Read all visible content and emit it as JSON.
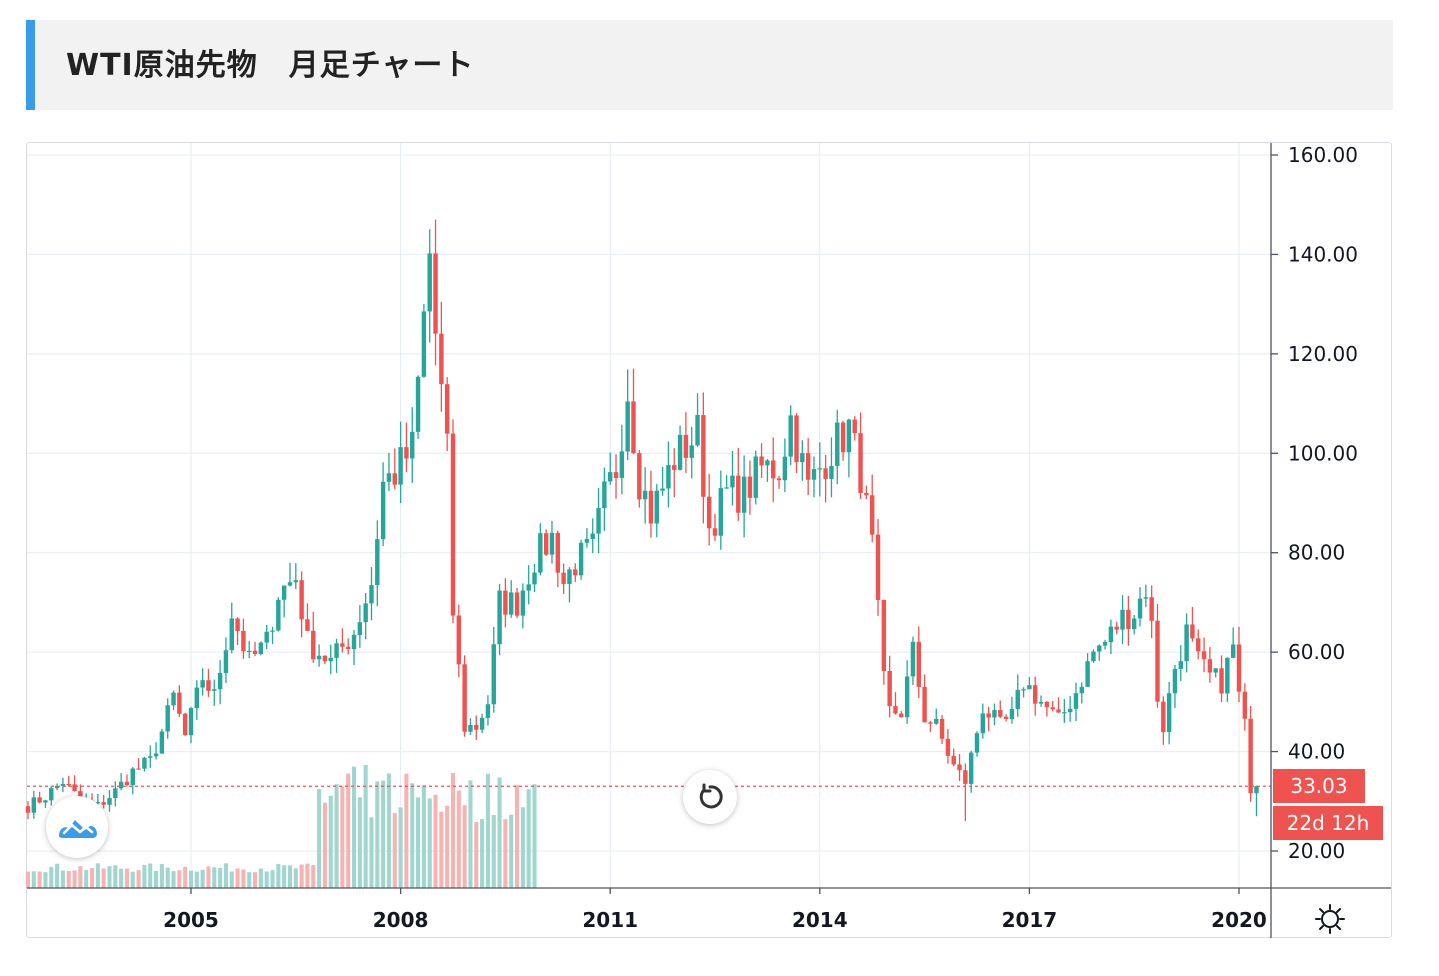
{
  "header": {
    "title": "WTI原油先物　月足チャート"
  },
  "colors": {
    "up": "#26a69a",
    "down": "#ef5350",
    "vol_up": "#9fd6d0",
    "vol_down": "#f5b3b1",
    "grid": "#e4ebf2",
    "accent": "#3a9be9",
    "last_price_line": "#ef5350"
  },
  "icons": {
    "reset": "refresh-icon",
    "logo": "tradingview-logo-icon",
    "settings": "gear-icon"
  },
  "y_axis": {
    "ticks": [
      "160.00",
      "140.00",
      "120.00",
      "100.00",
      "80.00",
      "60.00",
      "40.00",
      "20.00"
    ]
  },
  "x_axis": {
    "ticks": [
      "2005",
      "2008",
      "2011",
      "2014",
      "2017",
      "2020"
    ]
  },
  "last_price": {
    "label": "33.03",
    "countdown": "22d 12h"
  },
  "chart_data": {
    "type": "candlestick",
    "title": "WTI原油先物　月足チャート",
    "interval": "monthly",
    "x_range": [
      "2002-09",
      "2020-04"
    ],
    "ylim": [
      12,
      161
    ],
    "last_price": 33.03,
    "grid": true,
    "close_anchors": [
      [
        "2002-09",
        29
      ],
      [
        "2002-12",
        31
      ],
      [
        "2003-03",
        34
      ],
      [
        "2003-06",
        30
      ],
      [
        "2003-09",
        29
      ],
      [
        "2003-12",
        32
      ],
      [
        "2004-03",
        36
      ],
      [
        "2004-06",
        38
      ],
      [
        "2004-08",
        44
      ],
      [
        "2004-10",
        51
      ],
      [
        "2004-12",
        43
      ],
      [
        "2005-03",
        55
      ],
      [
        "2005-05",
        51
      ],
      [
        "2005-08",
        68
      ],
      [
        "2005-11",
        58
      ],
      [
        "2006-02",
        62
      ],
      [
        "2006-04",
        72
      ],
      [
        "2006-07",
        75
      ],
      [
        "2006-09",
        62
      ],
      [
        "2007-01",
        58
      ],
      [
        "2007-05",
        64
      ],
      [
        "2007-08",
        74
      ],
      [
        "2007-10",
        94
      ],
      [
        "2007-12",
        96
      ],
      [
        "2008-03",
        101
      ],
      [
        "2008-05",
        127
      ],
      [
        "2008-06",
        140
      ],
      [
        "2008-07",
        124
      ],
      [
        "2008-09",
        100
      ],
      [
        "2008-10",
        68
      ],
      [
        "2008-12",
        45
      ],
      [
        "2009-02",
        45
      ],
      [
        "2009-04",
        50
      ],
      [
        "2009-06",
        70
      ],
      [
        "2009-09",
        70
      ],
      [
        "2009-12",
        79
      ],
      [
        "2010-03",
        83
      ],
      [
        "2010-05",
        74
      ],
      [
        "2010-07",
        78
      ],
      [
        "2010-10",
        81
      ],
      [
        "2010-12",
        91
      ],
      [
        "2011-02",
        97
      ],
      [
        "2011-04",
        113
      ],
      [
        "2011-06",
        95
      ],
      [
        "2011-08",
        88
      ],
      [
        "2011-10",
        93
      ],
      [
        "2011-12",
        99
      ],
      [
        "2012-04",
        104
      ],
      [
        "2012-06",
        85
      ],
      [
        "2012-09",
        92
      ],
      [
        "2012-12",
        92
      ],
      [
        "2013-03",
        97
      ],
      [
        "2013-06",
        97
      ],
      [
        "2013-08",
        107
      ],
      [
        "2013-11",
        93
      ],
      [
        "2014-01",
        97
      ],
      [
        "2014-03",
        101
      ],
      [
        "2014-06",
        105
      ],
      [
        "2014-08",
        96
      ],
      [
        "2014-10",
        81
      ],
      [
        "2014-12",
        54
      ],
      [
        "2015-01",
        48
      ],
      [
        "2015-03",
        48
      ],
      [
        "2015-05",
        60
      ],
      [
        "2015-07",
        47
      ],
      [
        "2015-09",
        45
      ],
      [
        "2015-12",
        37
      ],
      [
        "2016-02",
        34
      ],
      [
        "2016-05",
        49
      ],
      [
        "2016-08",
        45
      ],
      [
        "2016-10",
        47
      ],
      [
        "2016-12",
        54
      ],
      [
        "2017-03",
        50
      ],
      [
        "2017-06",
        46
      ],
      [
        "2017-09",
        52
      ],
      [
        "2017-12",
        60
      ],
      [
        "2018-02",
        62
      ],
      [
        "2018-05",
        67
      ],
      [
        "2018-07",
        68
      ],
      [
        "2018-09",
        73
      ],
      [
        "2018-10",
        65
      ],
      [
        "2018-11",
        51
      ],
      [
        "2018-12",
        45
      ],
      [
        "2019-02",
        57
      ],
      [
        "2019-04",
        64
      ],
      [
        "2019-06",
        58
      ],
      [
        "2019-08",
        55
      ],
      [
        "2019-10",
        54
      ],
      [
        "2019-12",
        61
      ],
      [
        "2020-01",
        51
      ],
      [
        "2020-02",
        45
      ],
      [
        "2020-03",
        33
      ]
    ],
    "notable_extremes": {
      "high": {
        "date": "2008-07",
        "value": 147
      },
      "low": {
        "date": "2016-02",
        "value": 26
      }
    },
    "volume": {
      "visible_range": [
        "2002-09",
        "2009-12"
      ]
    }
  }
}
